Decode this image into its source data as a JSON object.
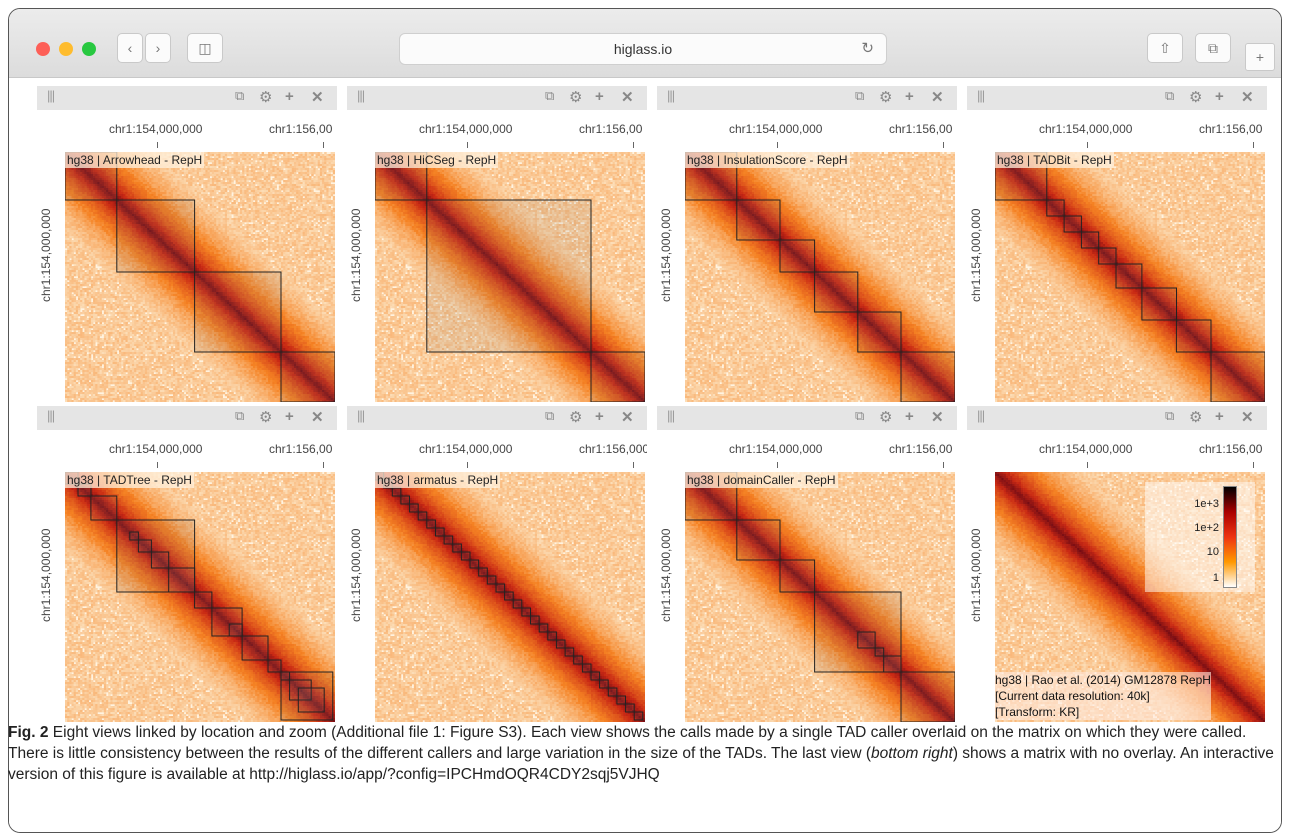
{
  "browser": {
    "url": "higlass.io"
  },
  "views": [
    {
      "track": "hg38 | Arrowhead - RepH",
      "tads": [
        [
          0,
          24
        ],
        [
          24,
          60
        ],
        [
          60,
          100
        ],
        [
          100,
          125
        ]
      ]
    },
    {
      "track": "hg38 | HiCSeg - RepH",
      "tads": [
        [
          0,
          24
        ],
        [
          24,
          100
        ],
        [
          100,
          125
        ]
      ]
    },
    {
      "track": "hg38 | InsulationScore - RepH",
      "tads": [
        [
          0,
          24
        ],
        [
          24,
          44
        ],
        [
          44,
          60
        ],
        [
          60,
          80
        ],
        [
          80,
          100
        ],
        [
          100,
          125
        ]
      ]
    },
    {
      "track": "hg38 | TADBit - RepH",
      "tads": [
        [
          0,
          24
        ],
        [
          24,
          32
        ],
        [
          32,
          40
        ],
        [
          40,
          48
        ],
        [
          48,
          56
        ],
        [
          56,
          68
        ],
        [
          68,
          84
        ],
        [
          84,
          100
        ],
        [
          100,
          125
        ]
      ]
    },
    {
      "track": "hg38 | TADTree - RepH",
      "tads": [
        [
          0,
          6
        ],
        [
          6,
          12
        ],
        [
          12,
          24
        ],
        [
          24,
          60
        ],
        [
          30,
          34
        ],
        [
          34,
          40
        ],
        [
          40,
          48
        ],
        [
          48,
          60
        ],
        [
          60,
          68
        ],
        [
          68,
          82
        ],
        [
          76,
          82
        ],
        [
          82,
          94
        ],
        [
          94,
          100
        ],
        [
          100,
          124
        ],
        [
          100,
          104
        ],
        [
          104,
          114
        ],
        [
          108,
          120
        ]
      ]
    },
    {
      "track": "hg38 | armatus - RepH",
      "tads": [
        [
          0,
          4
        ],
        [
          4,
          8
        ],
        [
          8,
          12
        ],
        [
          12,
          16
        ],
        [
          16,
          20
        ],
        [
          20,
          24
        ],
        [
          24,
          28
        ],
        [
          28,
          32
        ],
        [
          32,
          36
        ],
        [
          36,
          40
        ],
        [
          40,
          44
        ],
        [
          44,
          48
        ],
        [
          48,
          52
        ],
        [
          52,
          56
        ],
        [
          56,
          60
        ],
        [
          60,
          64
        ],
        [
          64,
          68
        ],
        [
          68,
          72
        ],
        [
          72,
          76
        ],
        [
          76,
          80
        ],
        [
          80,
          84
        ],
        [
          84,
          88
        ],
        [
          88,
          92
        ],
        [
          92,
          96
        ],
        [
          96,
          100
        ],
        [
          100,
          104
        ],
        [
          104,
          108
        ],
        [
          108,
          112
        ],
        [
          112,
          116
        ],
        [
          116,
          120
        ],
        [
          120,
          124
        ]
      ]
    },
    {
      "track": "hg38 | domainCaller - RepH",
      "tads": [
        [
          0,
          24
        ],
        [
          24,
          44
        ],
        [
          44,
          60
        ],
        [
          60,
          100
        ],
        [
          80,
          88
        ],
        [
          88,
          92
        ],
        [
          92,
          100
        ],
        [
          100,
          125
        ]
      ]
    },
    {
      "track": "",
      "tads": [],
      "info": [
        "hg38 | Rao et al. (2014) GM12878 RepH",
        "[Current data resolution: 40k]",
        "[Transform: KR]"
      ],
      "legend": [
        "1e+3",
        "1e+2",
        "10",
        "1"
      ]
    }
  ],
  "axis": {
    "top_left": "chr1:154,000,000",
    "top_right": "chr1:156,00",
    "top_right_alt": "chr1:156,000,",
    "left": "chr1:154,000,000"
  },
  "caption": {
    "bold": "Fig. 2",
    "text": " Eight views linked by location and zoom (Additional file 1: Figure S3). Each view shows the calls made by a single TAD caller overlaid on the matrix on which they were called. There is little consistency between the results of the different callers and large variation in the size of the TADs. The last view (",
    "italic": "bottom right",
    "text2": ") shows a matrix with no overlay. An interactive version of this figure is available at http://higlass.io/app/?config=IPCHmdOQR4CDY2sqj5VJHQ"
  },
  "colors": {
    "heat_low": "#fde2b6",
    "heat_mid": "#f5771e",
    "heat_high": "#8b0a0a",
    "tad": "#222222"
  }
}
